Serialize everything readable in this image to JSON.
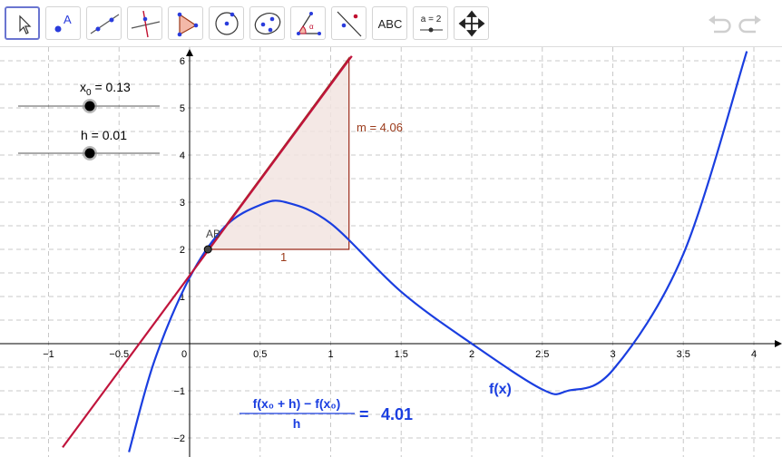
{
  "toolbar": {
    "tools": [
      {
        "name": "move-tool",
        "active": true
      },
      {
        "name": "point-tool"
      },
      {
        "name": "line-tool"
      },
      {
        "name": "perpendicular-line-tool"
      },
      {
        "name": "polygon-tool"
      },
      {
        "name": "circle-tool"
      },
      {
        "name": "ellipse-tool"
      },
      {
        "name": "angle-tool"
      },
      {
        "name": "reflect-tool"
      },
      {
        "name": "text-tool",
        "label": "ABC"
      },
      {
        "name": "slider-tool",
        "label": "a = 2"
      },
      {
        "name": "move-graphics-view-tool"
      }
    ],
    "undo_icon": "undo-icon",
    "redo_icon": "redo-icon"
  },
  "sliders": [
    {
      "name": "x0",
      "label_main": "x",
      "label_sub": "0",
      "label_rest": " = 0.13",
      "value": 0.13,
      "min": -5,
      "max": 5
    },
    {
      "name": "h",
      "label_main": "h = 0.01",
      "value": 0.01,
      "min": -5,
      "max": 5
    }
  ],
  "annotations": {
    "point_label": "AB",
    "slope_label": "m = 4.06",
    "run_label": "1",
    "function_label": "f(x)",
    "difference_quotient": {
      "numerator": "f(x₀ + h) − f(x₀)",
      "denominator": "h",
      "equals": "=",
      "value": "4.01"
    }
  },
  "axes": {
    "x_ticks": [
      "−1",
      "−0.5",
      "0",
      "0.5",
      "1",
      "1.5",
      "2",
      "2.5",
      "3",
      "3.5",
      "4"
    ],
    "y_ticks": [
      "−2",
      "−1",
      "1",
      "2",
      "3",
      "4",
      "5",
      "6"
    ],
    "x_range": [
      -1.3,
      4.15
    ],
    "y_range": [
      -2.35,
      6.3
    ]
  },
  "colors": {
    "curve": "#1a3ee0",
    "tangent": "#c0143c",
    "triangle_fill": "#f2e4e0",
    "triangle_stroke": "#9b2a1a",
    "label_brown": "#9b3a1a",
    "grid": "#c8c8c8"
  },
  "chart_data": {
    "type": "line",
    "series": [
      {
        "name": "f(x)",
        "x": [
          -0.43,
          -0.25,
          0,
          0.25,
          0.5,
          0.68,
          1,
          1.5,
          2,
          2.5,
          2.68,
          3,
          3.5,
          3.95
        ],
        "y": [
          -2.3,
          -0.37,
          1.4,
          2.48,
          2.94,
          3.0,
          2.55,
          1.1,
          0,
          -0.97,
          -1.0,
          -0.56,
          1.9,
          6.2
        ]
      },
      {
        "name": "tangent",
        "x": [
          -0.9,
          1.15
        ],
        "y": [
          -2.2,
          6.1
        ]
      }
    ],
    "point": {
      "label": "AB",
      "x": 0.13,
      "y": 2.0
    },
    "slope_triangle": {
      "x0": 0.13,
      "y0": 2.0,
      "run": 1,
      "rise": 4.06
    }
  }
}
